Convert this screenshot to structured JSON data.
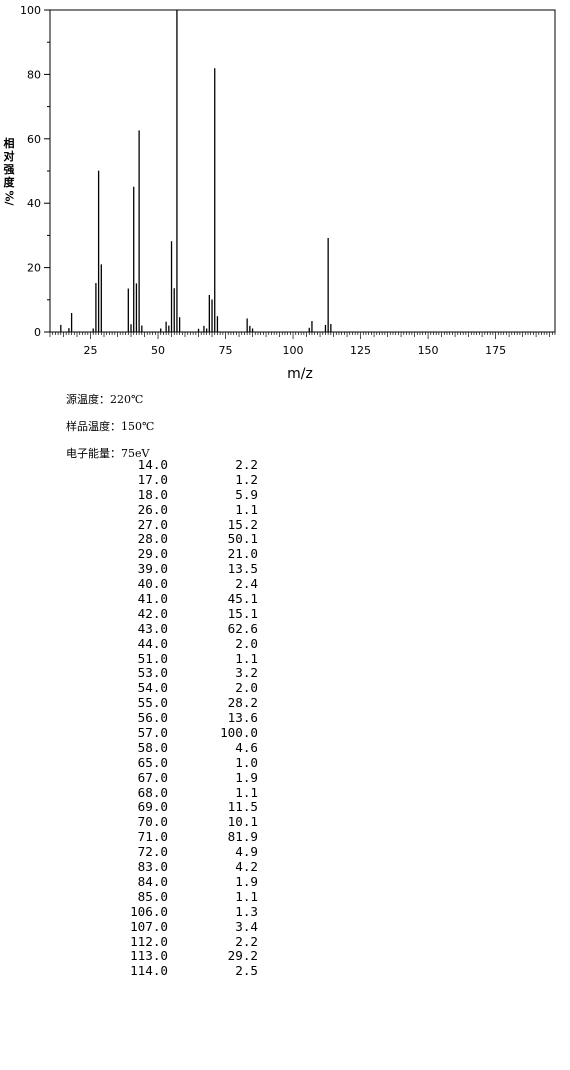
{
  "chart_data": {
    "type": "bar",
    "ylabel": [
      "相",
      "对",
      "强",
      "度",
      "%/"
    ],
    "xlabel": "m/z",
    "xlim": [
      10,
      197
    ],
    "ylim": [
      0,
      100
    ],
    "xticks": [
      25,
      50,
      75,
      100,
      125,
      150,
      175
    ],
    "yticks": [
      0,
      20,
      40,
      60,
      80,
      100
    ],
    "x": [
      14,
      17,
      18,
      26,
      27,
      28,
      29,
      39,
      40,
      41,
      42,
      43,
      44,
      51,
      53,
      54,
      55,
      56,
      57,
      58,
      65,
      67,
      68,
      69,
      70,
      71,
      72,
      83,
      84,
      85,
      106,
      107,
      112,
      113,
      114
    ],
    "values": [
      2.2,
      1.2,
      5.9,
      1.1,
      15.2,
      50.1,
      21.0,
      13.5,
      2.4,
      45.1,
      15.1,
      62.6,
      2.0,
      1.1,
      3.2,
      2.0,
      28.2,
      13.6,
      100.0,
      4.6,
      1.0,
      1.9,
      1.1,
      11.5,
      10.1,
      81.9,
      4.9,
      4.2,
      1.9,
      1.1,
      1.3,
      3.4,
      2.2,
      29.2,
      2.5
    ]
  },
  "conditions": {
    "source_temp": "源温度：220℃",
    "sample_temp": "样品温度：150℃",
    "electron_energy": "电子能量：75eV"
  },
  "peaks": [
    {
      "mz": "14.0",
      "ab": "2.2"
    },
    {
      "mz": "17.0",
      "ab": "1.2"
    },
    {
      "mz": "18.0",
      "ab": "5.9"
    },
    {
      "mz": "26.0",
      "ab": "1.1"
    },
    {
      "mz": "27.0",
      "ab": "15.2"
    },
    {
      "mz": "28.0",
      "ab": "50.1"
    },
    {
      "mz": "29.0",
      "ab": "21.0"
    },
    {
      "mz": "39.0",
      "ab": "13.5"
    },
    {
      "mz": "40.0",
      "ab": "2.4"
    },
    {
      "mz": "41.0",
      "ab": "45.1"
    },
    {
      "mz": "42.0",
      "ab": "15.1"
    },
    {
      "mz": "43.0",
      "ab": "62.6"
    },
    {
      "mz": "44.0",
      "ab": "2.0"
    },
    {
      "mz": "51.0",
      "ab": "1.1"
    },
    {
      "mz": "53.0",
      "ab": "3.2"
    },
    {
      "mz": "54.0",
      "ab": "2.0"
    },
    {
      "mz": "55.0",
      "ab": "28.2"
    },
    {
      "mz": "56.0",
      "ab": "13.6"
    },
    {
      "mz": "57.0",
      "ab": "100.0"
    },
    {
      "mz": "58.0",
      "ab": "4.6"
    },
    {
      "mz": "65.0",
      "ab": "1.0"
    },
    {
      "mz": "67.0",
      "ab": "1.9"
    },
    {
      "mz": "68.0",
      "ab": "1.1"
    },
    {
      "mz": "69.0",
      "ab": "11.5"
    },
    {
      "mz": "70.0",
      "ab": "10.1"
    },
    {
      "mz": "71.0",
      "ab": "81.9"
    },
    {
      "mz": "72.0",
      "ab": "4.9"
    },
    {
      "mz": "83.0",
      "ab": "4.2"
    },
    {
      "mz": "84.0",
      "ab": "1.9"
    },
    {
      "mz": "85.0",
      "ab": "1.1"
    },
    {
      "mz": "106.0",
      "ab": "1.3"
    },
    {
      "mz": "107.0",
      "ab": "3.4"
    },
    {
      "mz": "112.0",
      "ab": "2.2"
    },
    {
      "mz": "113.0",
      "ab": "29.2"
    },
    {
      "mz": "114.0",
      "ab": "2.5"
    }
  ]
}
